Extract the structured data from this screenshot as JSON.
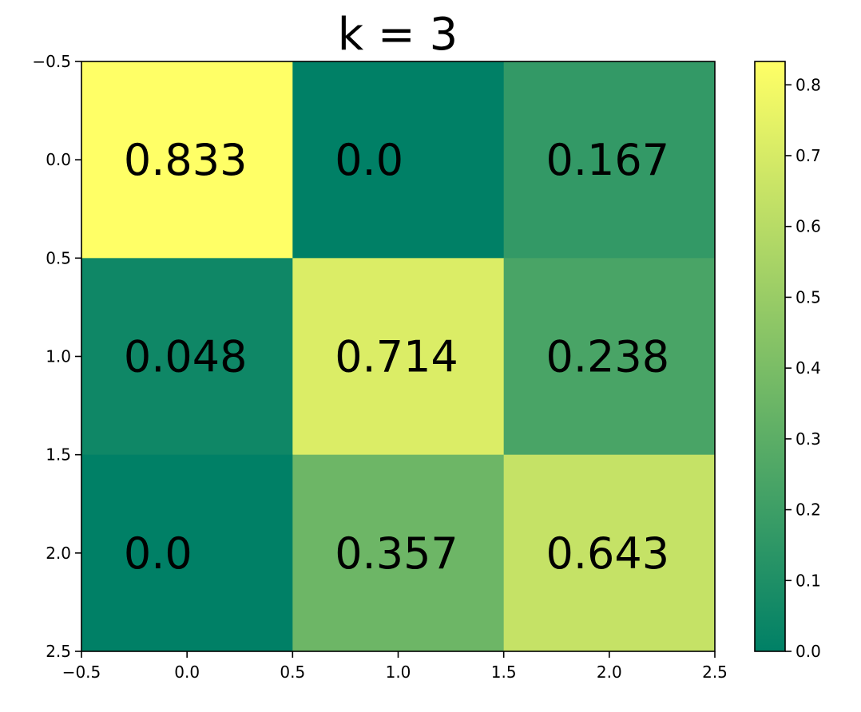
{
  "chart_data": {
    "type": "heatmap",
    "title": "k = 3",
    "xlabel": "",
    "ylabel": "",
    "colormap": "summer",
    "colormap_colors": [
      "#008066",
      "#ffff66"
    ],
    "matrix": [
      [
        0.833,
        0.0,
        0.167
      ],
      [
        0.048,
        0.714,
        0.238
      ],
      [
        0.0,
        0.357,
        0.643
      ]
    ],
    "cell_labels": [
      [
        "0.833",
        "0.0",
        "0.167"
      ],
      [
        "0.048",
        "0.714",
        "0.238"
      ],
      [
        "0.0",
        "0.357",
        "0.643"
      ]
    ],
    "xlim": [
      -0.5,
      2.5
    ],
    "ylim": [
      2.5,
      -0.5
    ],
    "x_ticks": [
      "-0.5",
      "0.0",
      "0.5",
      "1.0",
      "1.5",
      "2.0",
      "2.5"
    ],
    "y_ticks": [
      "-0.5",
      "0.0",
      "0.5",
      "1.0",
      "1.5",
      "2.0",
      "2.5"
    ],
    "colorbar": {
      "range": [
        0.0,
        0.833
      ],
      "ticks": [
        "0.0",
        "0.1",
        "0.2",
        "0.3",
        "0.4",
        "0.5",
        "0.6",
        "0.7",
        "0.8"
      ],
      "location": "right"
    },
    "grid": false
  }
}
